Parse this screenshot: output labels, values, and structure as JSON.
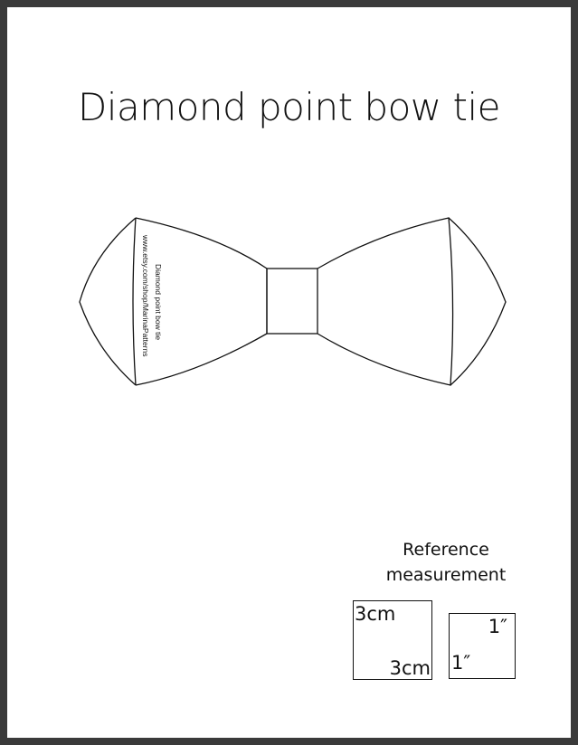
{
  "title": "Diamond point bow tie",
  "pattern_label": {
    "line1": "Diamond point bow tie",
    "line2": "www.etsy.com/shop/MarinaPatterns"
  },
  "reference": {
    "label_line1": "Reference",
    "label_line2": "measurement",
    "cm_box": {
      "top_label": "3cm",
      "bottom_label": "3cm"
    },
    "inch_box": {
      "top_label": "1″",
      "bottom_label": "1″"
    }
  }
}
